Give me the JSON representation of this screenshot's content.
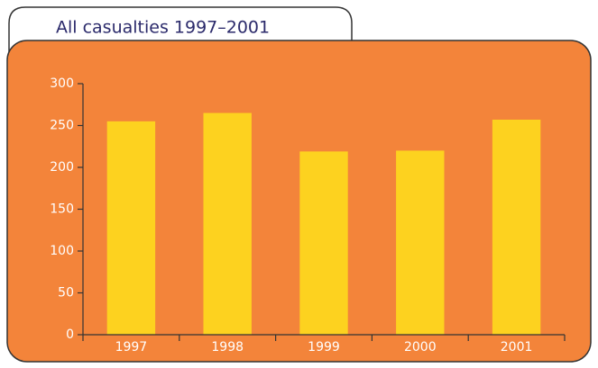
{
  "chart_data": {
    "type": "bar",
    "title": "All casualties 1997–2001",
    "categories": [
      "1997",
      "1998",
      "1999",
      "2000",
      "2001"
    ],
    "values": [
      255,
      265,
      219,
      220,
      257
    ],
    "color": "#fdd21f",
    "ylim": [
      0,
      300
    ],
    "yticks": [
      0,
      50,
      100,
      150,
      200,
      250,
      300
    ],
    "grid": false
  }
}
